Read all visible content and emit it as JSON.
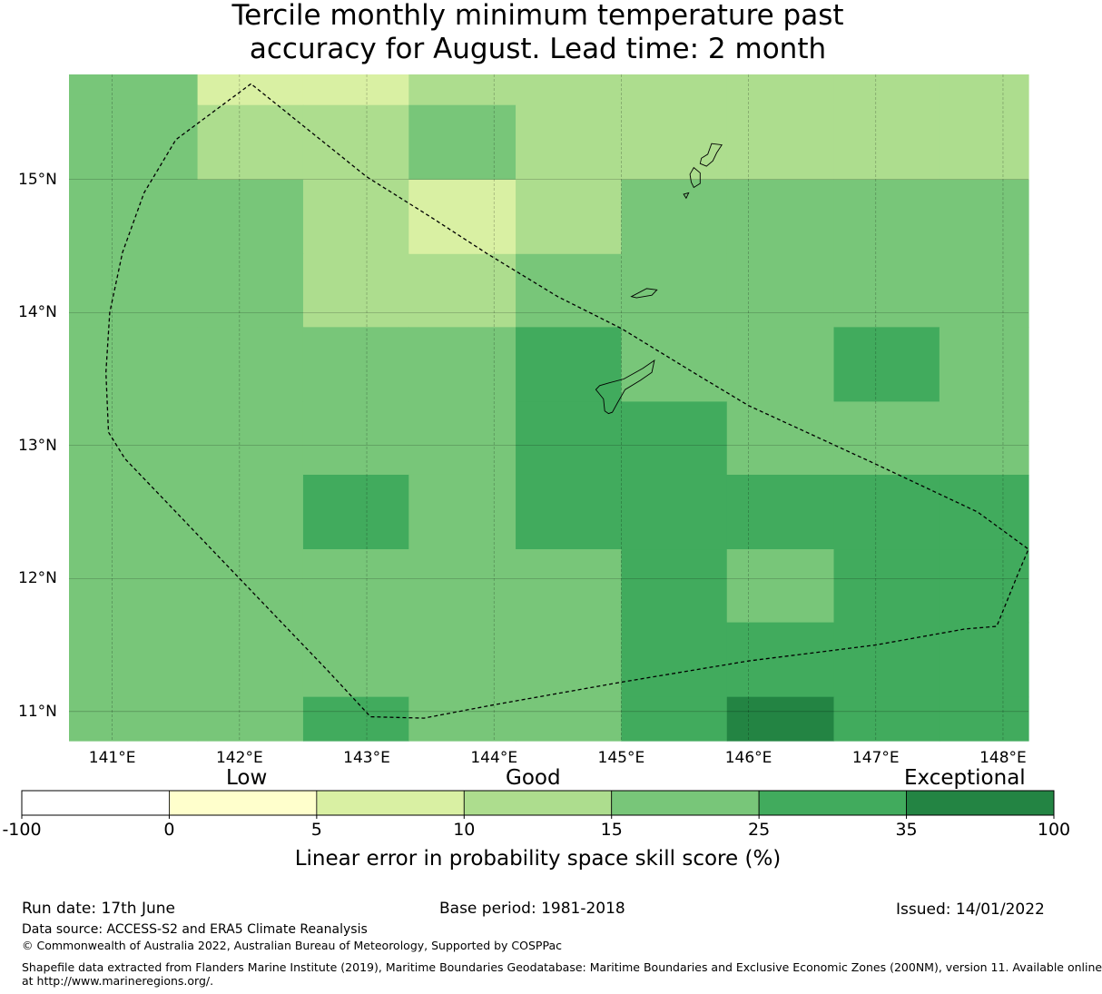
{
  "title": {
    "line1": "Tercile monthly minimum temperature past",
    "line2": "accuracy for August. Lead time: 2 month"
  },
  "map": {
    "lon_ticks": [
      "141°E",
      "142°E",
      "143°E",
      "144°E",
      "145°E",
      "146°E",
      "147°E",
      "148°E"
    ],
    "lat_ticks": [
      "15°N",
      "14°N",
      "13°N",
      "12°N",
      "11°N"
    ],
    "palette": [
      "#ffffff",
      "#ffffcc",
      "#d9f0a3",
      "#addd8e",
      "#78c679",
      "#41ab5d",
      "#238443"
    ],
    "grid_lon_edges": [
      140.0,
      141.67,
      142.5,
      143.33,
      144.17,
      145.0,
      145.83,
      146.67,
      147.5,
      148.33
    ],
    "grid_lat_edges": [
      16.0,
      15.56,
      15.0,
      14.44,
      13.89,
      13.33,
      12.78,
      12.22,
      11.67,
      11.11,
      10.56
    ],
    "cell_class": [
      [
        4,
        2,
        2,
        3,
        3,
        3,
        3,
        3,
        3
      ],
      [
        4,
        3,
        3,
        4,
        3,
        3,
        3,
        3,
        3
      ],
      [
        4,
        4,
        3,
        2,
        3,
        4,
        4,
        4,
        4
      ],
      [
        4,
        4,
        3,
        3,
        4,
        4,
        4,
        4,
        4
      ],
      [
        4,
        4,
        4,
        4,
        5,
        4,
        4,
        5,
        4
      ],
      [
        4,
        4,
        4,
        4,
        5,
        5,
        4,
        4,
        4
      ],
      [
        4,
        4,
        5,
        4,
        5,
        5,
        5,
        5,
        5
      ],
      [
        4,
        4,
        4,
        4,
        4,
        5,
        4,
        5,
        5
      ],
      [
        4,
        4,
        4,
        4,
        4,
        5,
        5,
        5,
        5
      ],
      [
        4,
        4,
        5,
        4,
        4,
        5,
        6,
        5,
        5
      ]
    ],
    "eez_boundary": [
      [
        142.09,
        15.72
      ],
      [
        141.5,
        15.3
      ],
      [
        141.25,
        14.9
      ],
      [
        141.08,
        14.45
      ],
      [
        140.98,
        14.0
      ],
      [
        140.95,
        13.55
      ],
      [
        140.97,
        13.1
      ],
      [
        141.1,
        12.9
      ],
      [
        141.5,
        12.5
      ],
      [
        141.9,
        12.1
      ],
      [
        142.3,
        11.7
      ],
      [
        142.7,
        11.3
      ],
      [
        143.03,
        10.96
      ],
      [
        143.45,
        10.95
      ],
      [
        144.0,
        11.05
      ],
      [
        145.0,
        11.22
      ],
      [
        146.0,
        11.38
      ],
      [
        147.0,
        11.5
      ],
      [
        147.7,
        11.62
      ],
      [
        147.95,
        11.64
      ],
      [
        148.12,
        12.04
      ],
      [
        148.2,
        12.22
      ],
      [
        147.8,
        12.5
      ],
      [
        147.0,
        12.86
      ],
      [
        146.5,
        13.08
      ],
      [
        146.0,
        13.3
      ],
      [
        145.6,
        13.53
      ],
      [
        145.0,
        13.88
      ],
      [
        144.5,
        14.12
      ],
      [
        143.95,
        14.44
      ],
      [
        143.5,
        14.72
      ],
      [
        143.0,
        15.02
      ],
      [
        142.09,
        15.72
      ]
    ],
    "islands": [
      [
        [
          145.17,
          13.58
        ],
        [
          145.26,
          13.64
        ],
        [
          145.24,
          13.55
        ],
        [
          145.15,
          13.49
        ],
        [
          145.03,
          13.42
        ],
        [
          144.97,
          13.32
        ],
        [
          144.93,
          13.25
        ],
        [
          144.9,
          13.24
        ],
        [
          144.87,
          13.26
        ],
        [
          144.86,
          13.35
        ],
        [
          144.8,
          13.42
        ],
        [
          144.83,
          13.45
        ],
        [
          144.9,
          13.47
        ],
        [
          145.02,
          13.5
        ],
        [
          145.17,
          13.58
        ]
      ],
      [
        [
          145.71,
          15.27
        ],
        [
          145.79,
          15.26
        ],
        [
          145.75,
          15.2
        ],
        [
          145.72,
          15.14
        ],
        [
          145.67,
          15.1
        ],
        [
          145.62,
          15.12
        ],
        [
          145.63,
          15.16
        ],
        [
          145.68,
          15.19
        ],
        [
          145.71,
          15.27
        ]
      ],
      [
        [
          145.57,
          15.09
        ],
        [
          145.62,
          15.05
        ],
        [
          145.62,
          14.97
        ],
        [
          145.57,
          14.94
        ],
        [
          145.55,
          14.98
        ],
        [
          145.54,
          15.04
        ],
        [
          145.57,
          15.09
        ]
      ],
      [
        [
          145.08,
          14.12
        ],
        [
          145.2,
          14.18
        ],
        [
          145.28,
          14.17
        ],
        [
          145.24,
          14.13
        ],
        [
          145.12,
          14.11
        ],
        [
          145.08,
          14.12
        ]
      ],
      [
        [
          145.49,
          14.89
        ],
        [
          145.53,
          14.9
        ],
        [
          145.51,
          14.86
        ],
        [
          145.49,
          14.89
        ]
      ]
    ]
  },
  "colorbar": {
    "categories": [
      "Low",
      "Good",
      "Exceptional"
    ],
    "ticks": [
      "-100",
      "0",
      "5",
      "10",
      "15",
      "25",
      "35",
      "100"
    ],
    "label": "Linear error in probability space skill score (%)"
  },
  "footer": {
    "run_date": "Run date: 17th June",
    "base_period": "Base period: 1981-2018",
    "issued": "Issued: 14/01/2022",
    "data_source": "Data source: ACCESS-S2 and ERA5 Climate Reanalysis",
    "copyright": "© Commonwealth of Australia 2022, Australian Bureau of Meteorology, Supported by COSPPac",
    "shapefile_line1": "Shapefile data extracted from Flanders Marine Institute (2019), Maritime Boundaries Geodatabase: Maritime Boundaries and Exclusive Economic Zones (200NM), version 11. Available online",
    "shapefile_line2": "at http://www.marineregions.org/."
  }
}
